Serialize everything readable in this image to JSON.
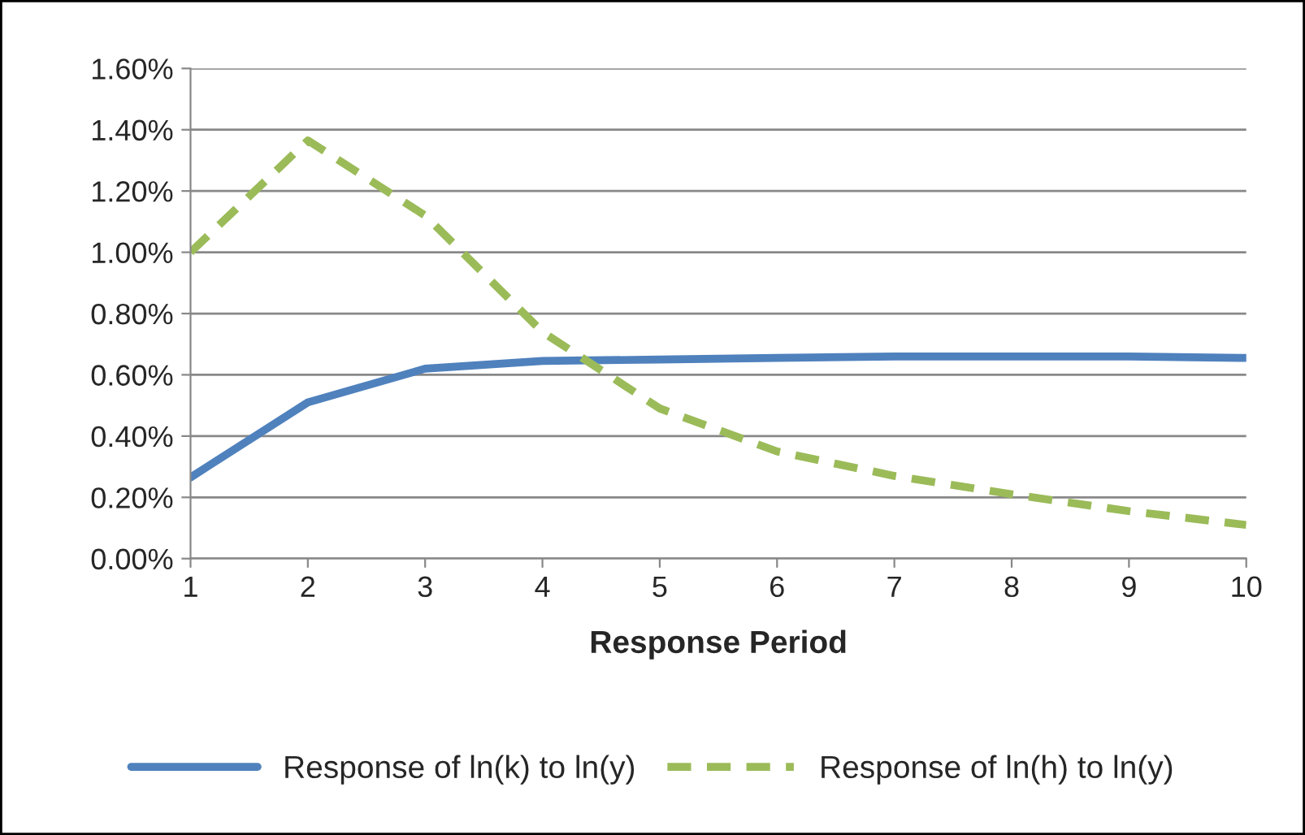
{
  "chart_data": {
    "type": "line",
    "xlabel": "Response Period",
    "x": [
      1,
      2,
      3,
      4,
      5,
      6,
      7,
      8,
      9,
      10
    ],
    "xlim": [
      1,
      10
    ],
    "xticks": [
      1,
      2,
      3,
      4,
      5,
      6,
      7,
      8,
      9,
      10
    ],
    "ylim": [
      0,
      1.6
    ],
    "yticks": [
      {
        "value": 0,
        "label": "0.00%"
      },
      {
        "value": 0.2,
        "label": "0.20%"
      },
      {
        "value": 0.4,
        "label": "0.40%"
      },
      {
        "value": 0.6,
        "label": "0.60%"
      },
      {
        "value": 0.8,
        "label": "0.80%"
      },
      {
        "value": 1.0,
        "label": "1.00%"
      },
      {
        "value": 1.2,
        "label": "1.20%"
      },
      {
        "value": 1.4,
        "label": "1.40%"
      },
      {
        "value": 1.6,
        "label": "1.60%"
      }
    ],
    "grid": "y",
    "legend": "bottom",
    "marker": "none",
    "series": [
      {
        "name": "Response of ln(k) to ln(y)",
        "color": "#4f81bd",
        "line_style": "solid",
        "values": [
          0.265,
          0.51,
          0.62,
          0.645,
          0.65,
          0.655,
          0.66,
          0.66,
          0.66,
          0.655
        ]
      },
      {
        "name": "Response of ln(h) to ln(y)",
        "color": "#9bbb59",
        "line_style": "dashed",
        "values": [
          1.0,
          1.365,
          1.12,
          0.74,
          0.49,
          0.35,
          0.27,
          0.21,
          0.155,
          0.11
        ]
      }
    ]
  }
}
